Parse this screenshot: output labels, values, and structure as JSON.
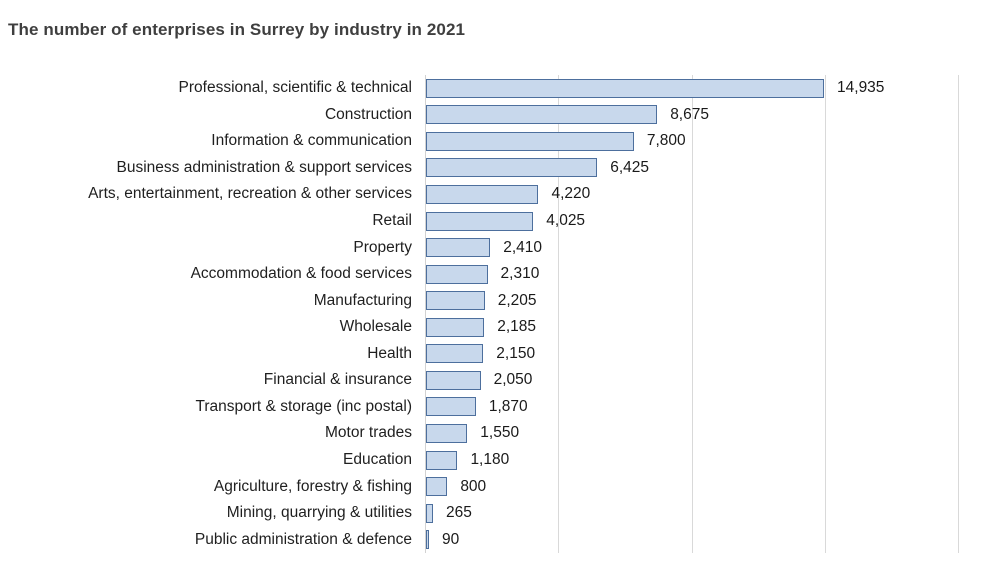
{
  "title": "The number of enterprises in Surrey by industry in 2021",
  "colors": {
    "bar_fill": "#c8d8ec",
    "bar_border": "#4d6f9d",
    "gridline": "#d9d9d9",
    "axis_line": "#d2d2d2",
    "title_text": "#3f3f3f",
    "label_text": "#1f1f1f"
  },
  "chart_data": {
    "type": "bar",
    "orientation": "horizontal",
    "title": "The number of enterprises in Surrey by industry in 2021",
    "xlabel": "",
    "ylabel": "",
    "xlim": [
      0,
      20000
    ],
    "gridline_interval": 5000,
    "grid": true,
    "legend": false,
    "categories": [
      "Professional, scientific & technical",
      "Construction",
      "Information & communication",
      "Business administration & support services",
      "Arts, entertainment, recreation & other services",
      "Retail",
      "Property",
      "Accommodation & food services",
      "Manufacturing",
      "Wholesale",
      "Health",
      "Financial & insurance",
      "Transport & storage (inc postal)",
      "Motor trades",
      "Education",
      "Agriculture, forestry & fishing",
      "Mining, quarrying & utilities",
      "Public administration & defence"
    ],
    "values": [
      14935,
      8675,
      7800,
      6425,
      4220,
      4025,
      2410,
      2310,
      2205,
      2185,
      2150,
      2050,
      1870,
      1550,
      1180,
      800,
      265,
      90
    ],
    "value_labels": [
      "14,935",
      "8,675",
      "7,800",
      "6,425",
      "4,220",
      "4,025",
      "2,410",
      "2,310",
      "2,205",
      "2,185",
      "2,150",
      "2,050",
      "1,870",
      "1,550",
      "1,180",
      "800",
      "265",
      "90"
    ]
  }
}
